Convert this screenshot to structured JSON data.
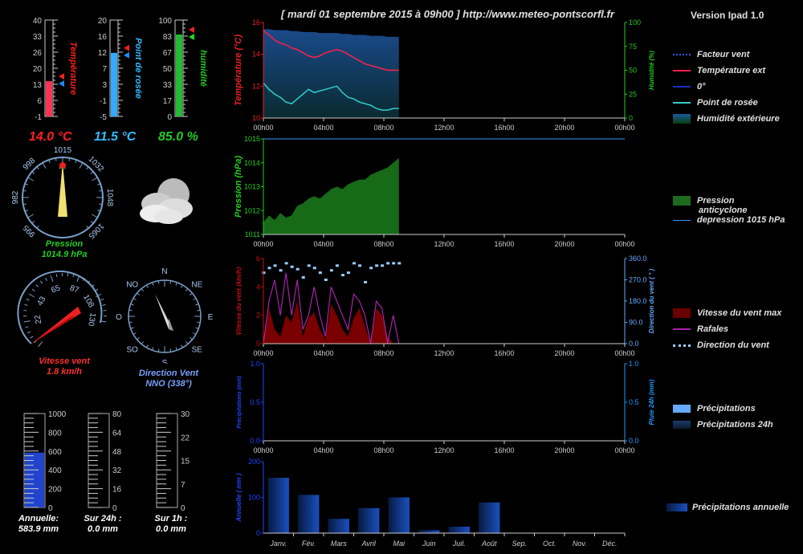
{
  "header": {
    "title": "[ mardi 01 septembre 2015 à 09h00 ] http://www.meteo-pontscorfl.fr",
    "version": "Version Ipad 1.0"
  },
  "thermometers": [
    {
      "label": "Température",
      "value": "14.0 °C",
      "color": "#ff2020",
      "ticks": [
        "40",
        "33",
        "26",
        "20",
        "13",
        "6",
        "-1"
      ],
      "min": -1,
      "max": 40,
      "level": 14.0
    },
    {
      "label": "Point de rosée",
      "value": "11.5 °C",
      "color": "#33bbff",
      "ticks": [
        "20",
        "16",
        "12",
        "7",
        "3",
        "-1",
        "-5"
      ],
      "min": -5,
      "max": 20,
      "level": 11.5
    },
    {
      "label": "humidité",
      "value": "85.0  %",
      "color": "#22cc22",
      "ticks": [
        "100",
        "83",
        "67",
        "50",
        "33",
        "17",
        "0"
      ],
      "min": 0,
      "max": 100,
      "level": 85.0
    }
  ],
  "pressure_gauge": {
    "ticks": [
      "1015",
      "1032",
      "1048",
      "1065",
      "995",
      "982",
      "998"
    ],
    "label": "Pression",
    "value": "1014.9 hPa"
  },
  "wind_speed_gauge": {
    "ticks": [
      "22",
      "43",
      "65",
      "87",
      "108",
      "130"
    ],
    "label": "Vitesse vent",
    "value": "1.8 km/h"
  },
  "wind_dir_gauge": {
    "ticks": [
      "N",
      "NE",
      "E",
      "SE",
      "S",
      "SO",
      "O",
      "NO"
    ],
    "label": "Direction Vent",
    "value": "NNO (338°)"
  },
  "rain_gauges": [
    {
      "ticks": [
        "1000",
        "800",
        "600",
        "400",
        "200",
        "0"
      ],
      "label": "Annuelle:",
      "value": "583.9 mm",
      "level": 583.9,
      "max": 1000
    },
    {
      "ticks": [
        "80",
        "64",
        "48",
        "32",
        "16",
        "0"
      ],
      "label": "Sur 24h :",
      "value": "0.0 mm",
      "level": 0,
      "max": 80
    },
    {
      "ticks": [
        "30",
        "22",
        "15",
        "7",
        "0"
      ],
      "label": "Sur 1h :",
      "value": "0.0 mm",
      "level": 0,
      "max": 30
    }
  ],
  "time_ticks": [
    "00h00",
    "04h00",
    "08h00",
    "12h00",
    "16h00",
    "20h00",
    "00h00"
  ],
  "chart_data": [
    {
      "type": "line",
      "ylabel": "Température (°C)",
      "y2label": "Humidité (%)",
      "ylim": [
        10,
        16
      ],
      "y2lim": [
        0,
        100
      ],
      "yticks": [
        "16",
        "14",
        "12",
        "10"
      ],
      "y2ticks": [
        "100",
        "75",
        "50",
        "25",
        "0"
      ],
      "series": [
        {
          "name": "Température ext",
          "color": "#ff2050",
          "values": [
            15.5,
            15.2,
            14.9,
            14.7,
            14.6,
            14.4,
            14.3,
            14.1,
            13.9,
            13.8,
            13.9,
            14.1,
            14.2,
            14.3,
            14.2,
            14.0,
            13.8,
            13.6,
            13.4,
            13.3,
            13.2,
            13.1,
            13.0,
            13.0,
            13.0
          ]
        },
        {
          "name": "Point de rosée",
          "color": "#33cccc",
          "values": [
            12.2,
            11.8,
            11.5,
            11.3,
            11.0,
            10.9,
            11.2,
            11.5,
            11.8,
            11.6,
            11.7,
            11.8,
            11.9,
            12.0,
            11.6,
            11.3,
            11.2,
            11.0,
            10.9,
            10.8,
            10.6,
            10.5,
            10.5,
            10.6,
            10.6
          ]
        },
        {
          "name": "Humidité extérieure",
          "color": "#1a5a99",
          "values": [
            93,
            93,
            92,
            92,
            92,
            91,
            91,
            90,
            90,
            90,
            89,
            89,
            89,
            89,
            88,
            88,
            87,
            87,
            87,
            86,
            86,
            86,
            85,
            85,
            85
          ]
        }
      ],
      "legend": [
        "Facteur vent",
        "Température ext",
        "0°",
        "Point de rosée",
        "Humidité extérieure"
      ]
    },
    {
      "type": "area",
      "ylabel": "Pression (hPa)",
      "ylim": [
        1011,
        1015
      ],
      "yticks": [
        "1015",
        "1014",
        "1013",
        "1012",
        "1011"
      ],
      "series": [
        {
          "name": "Pression",
          "color": "#1e8a1e",
          "values": [
            1011.5,
            1011.8,
            1011.6,
            1011.9,
            1011.7,
            1011.8,
            1012.2,
            1012.3,
            1012.5,
            1012.6,
            1012.5,
            1012.7,
            1012.9,
            1013.0,
            1012.9,
            1013.1,
            1013.2,
            1013.3,
            1013.3,
            1013.5,
            1013.6,
            1013.7,
            1013.8,
            1014.0,
            1014.2
          ]
        },
        {
          "name": "depression 1015 hPa",
          "color": "#3399ff",
          "values": [
            1015,
            1015
          ]
        }
      ],
      "legend": [
        "Pression",
        "anticyclone",
        "depression 1015 hPa"
      ]
    },
    {
      "type": "area",
      "ylabel": "Vitesse du vent (km/h)",
      "y2label": "Direction du vent ( ° )",
      "ylim": [
        0,
        6
      ],
      "y2lim": [
        0,
        360
      ],
      "yticks": [
        "6",
        "4",
        "2",
        "0"
      ],
      "y2ticks": [
        "360.0",
        "270.0",
        "180.0",
        "90.0",
        "0.0"
      ],
      "series": [
        {
          "name": "Vitesse du vent max",
          "color": "#8a0000",
          "values": [
            0,
            2.5,
            1,
            0.5,
            2,
            1.5,
            3,
            0.5,
            1.8,
            2.2,
            1,
            0.3,
            2.8,
            2,
            1,
            0.5,
            1.8,
            2.5,
            1.2,
            0,
            2.5,
            2,
            0.5,
            0,
            0
          ]
        },
        {
          "name": "Rafales",
          "color": "#aa22aa",
          "values": [
            0,
            3,
            4.5,
            2,
            5,
            2,
            4.5,
            1,
            2,
            4,
            2,
            0.5,
            4,
            3,
            2,
            1,
            3.5,
            3,
            2,
            0,
            3,
            2.5,
            0,
            2,
            0
          ]
        },
        {
          "name": "Direction du vent",
          "color": "#99ccff",
          "values": [
            300,
            320,
            330,
            310,
            340,
            325,
            315,
            280,
            330,
            320,
            300,
            270,
            310,
            330,
            290,
            300,
            340,
            330,
            260,
            320,
            330,
            330,
            340,
            340,
            340
          ]
        }
      ],
      "legend": [
        "Vitesse du vent max",
        "Rafales",
        "Direction du vent"
      ]
    },
    {
      "type": "bar",
      "ylabel": "Précipitations (mm)",
      "y2label": "Pluie 24h (mm)",
      "ylim": [
        0,
        1
      ],
      "y2lim": [
        0,
        1
      ],
      "yticks": [
        "1.0",
        "0.5",
        "0.0"
      ],
      "y2ticks": [
        "1.0",
        "0.5",
        "0.0"
      ],
      "series": [
        {
          "name": "Précipitations",
          "color": "#66aaff",
          "values": []
        },
        {
          "name": "Précipitations 24h",
          "color": "#113355",
          "values": []
        }
      ],
      "legend": [
        "Précipitations",
        "Précipitations 24h"
      ]
    },
    {
      "type": "bar",
      "ylabel": "Annuelle ( mm )",
      "ylim": [
        0,
        200
      ],
      "yticks": [
        "200",
        "100",
        "0"
      ],
      "categories": [
        "Janv.",
        "Fév.",
        "Mars",
        "Avril",
        "Mai",
        "Juin",
        "Juil.",
        "Août",
        "Sep.",
        "Oct.",
        "Nov.",
        "Déc."
      ],
      "series": [
        {
          "name": "Précipitations annuelle",
          "color": "#1040a0",
          "values": [
            155,
            107,
            40,
            70,
            100,
            8,
            18,
            86,
            0,
            0,
            0,
            0
          ]
        }
      ],
      "legend": [
        "Précipitations annuelle"
      ]
    }
  ]
}
